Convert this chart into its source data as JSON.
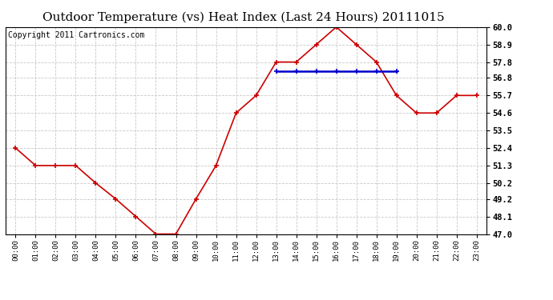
{
  "title": "Outdoor Temperature (vs) Heat Index (Last 24 Hours) 20111015",
  "copyright": "Copyright 2011 Cartronics.com",
  "x_labels": [
    "00:00",
    "01:00",
    "02:00",
    "03:00",
    "04:00",
    "05:00",
    "06:00",
    "07:00",
    "08:00",
    "09:00",
    "10:00",
    "11:00",
    "12:00",
    "13:00",
    "14:00",
    "15:00",
    "16:00",
    "17:00",
    "18:00",
    "19:00",
    "20:00",
    "21:00",
    "22:00",
    "23:00"
  ],
  "temp_data": [
    52.4,
    51.3,
    51.3,
    51.3,
    50.2,
    49.2,
    48.1,
    47.0,
    47.0,
    49.2,
    51.3,
    54.6,
    55.7,
    57.8,
    57.8,
    58.9,
    60.0,
    58.9,
    57.8,
    55.7,
    54.6,
    54.6,
    55.7,
    55.7
  ],
  "heat_index_data": [
    null,
    null,
    null,
    null,
    null,
    null,
    null,
    null,
    null,
    null,
    null,
    null,
    null,
    57.2,
    57.2,
    57.2,
    57.2,
    57.2,
    57.2,
    57.2,
    null,
    null,
    null,
    null
  ],
  "temp_color": "#cc0000",
  "heat_index_color": "#0000cc",
  "background_color": "#ffffff",
  "grid_color": "#c8c8c8",
  "ylim": [
    47.0,
    60.0
  ],
  "yticks": [
    47.0,
    48.1,
    49.2,
    50.2,
    51.3,
    52.4,
    53.5,
    54.6,
    55.7,
    56.8,
    57.8,
    58.9,
    60.0
  ],
  "title_fontsize": 11,
  "copyright_fontsize": 7
}
